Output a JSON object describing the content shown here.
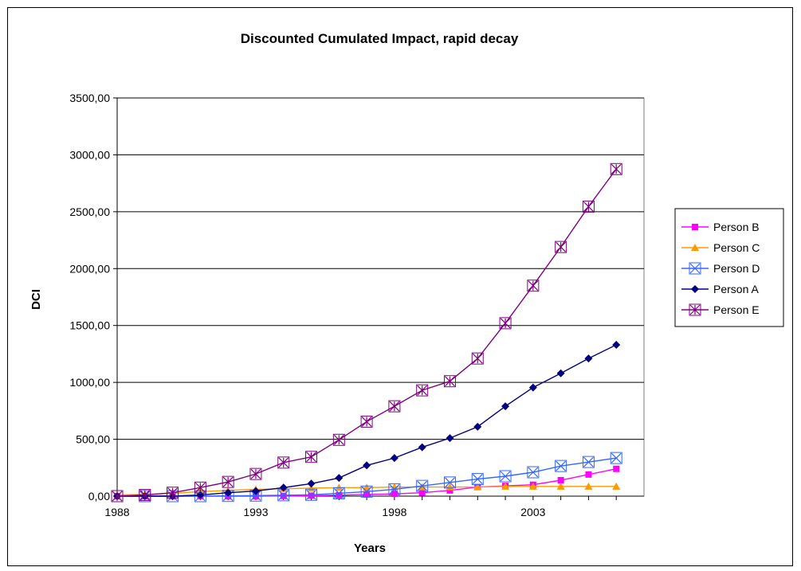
{
  "chart_data": {
    "type": "line",
    "title": "Discounted Cumulated Impact, rapid decay",
    "xlabel": "Years",
    "ylabel": "DCI",
    "x": [
      1988,
      1989,
      1990,
      1991,
      1992,
      1993,
      1994,
      1995,
      1996,
      1997,
      1998,
      1999,
      2000,
      2001,
      2002,
      2003,
      2004,
      2005,
      2006
    ],
    "xticks": [
      1988,
      1993,
      1998,
      2003
    ],
    "xtick_labels": [
      "1988",
      "1993",
      "1998",
      "2003"
    ],
    "xlim": [
      1988,
      2007
    ],
    "ylim": [
      0,
      3500
    ],
    "yticks": [
      0,
      500,
      1000,
      1500,
      2000,
      2500,
      3000,
      3500
    ],
    "ytick_labels": [
      "0,00",
      "500,00",
      "1000,00",
      "1500,00",
      "2000,00",
      "2500,00",
      "3000,00",
      "3500,00"
    ],
    "grid": "horizontal",
    "legend_position": "right",
    "series": [
      {
        "name": "Person B",
        "color": "#ff00ff",
        "marker": "square",
        "values": [
          0,
          0,
          0,
          0,
          0,
          0,
          2,
          4,
          8,
          15,
          20,
          30,
          50,
          80,
          90,
          100,
          140,
          190,
          240
        ]
      },
      {
        "name": "Person C",
        "color": "#ff9900",
        "marker": "triangle",
        "values": [
          10,
          15,
          25,
          40,
          50,
          60,
          65,
          70,
          75,
          75,
          80,
          80,
          80,
          80,
          85,
          85,
          85,
          85,
          85
        ]
      },
      {
        "name": "Person D",
        "color": "#3366ff",
        "marker": "x-square",
        "values": [
          0,
          0,
          0,
          0,
          2,
          5,
          8,
          12,
          25,
          40,
          60,
          90,
          120,
          150,
          175,
          210,
          265,
          300,
          335
        ]
      },
      {
        "name": "Person A",
        "color": "#000080",
        "marker": "diamond",
        "values": [
          0,
          0,
          0,
          10,
          30,
          45,
          75,
          110,
          160,
          270,
          335,
          430,
          510,
          610,
          790,
          955,
          1080,
          1210,
          1330
        ]
      },
      {
        "name": "Person E",
        "color": "#800080",
        "marker": "asterisk-square",
        "values": [
          0,
          10,
          30,
          75,
          125,
          195,
          295,
          345,
          495,
          655,
          790,
          930,
          1010,
          1210,
          1520,
          1850,
          2190,
          2545,
          2875
        ]
      }
    ]
  }
}
